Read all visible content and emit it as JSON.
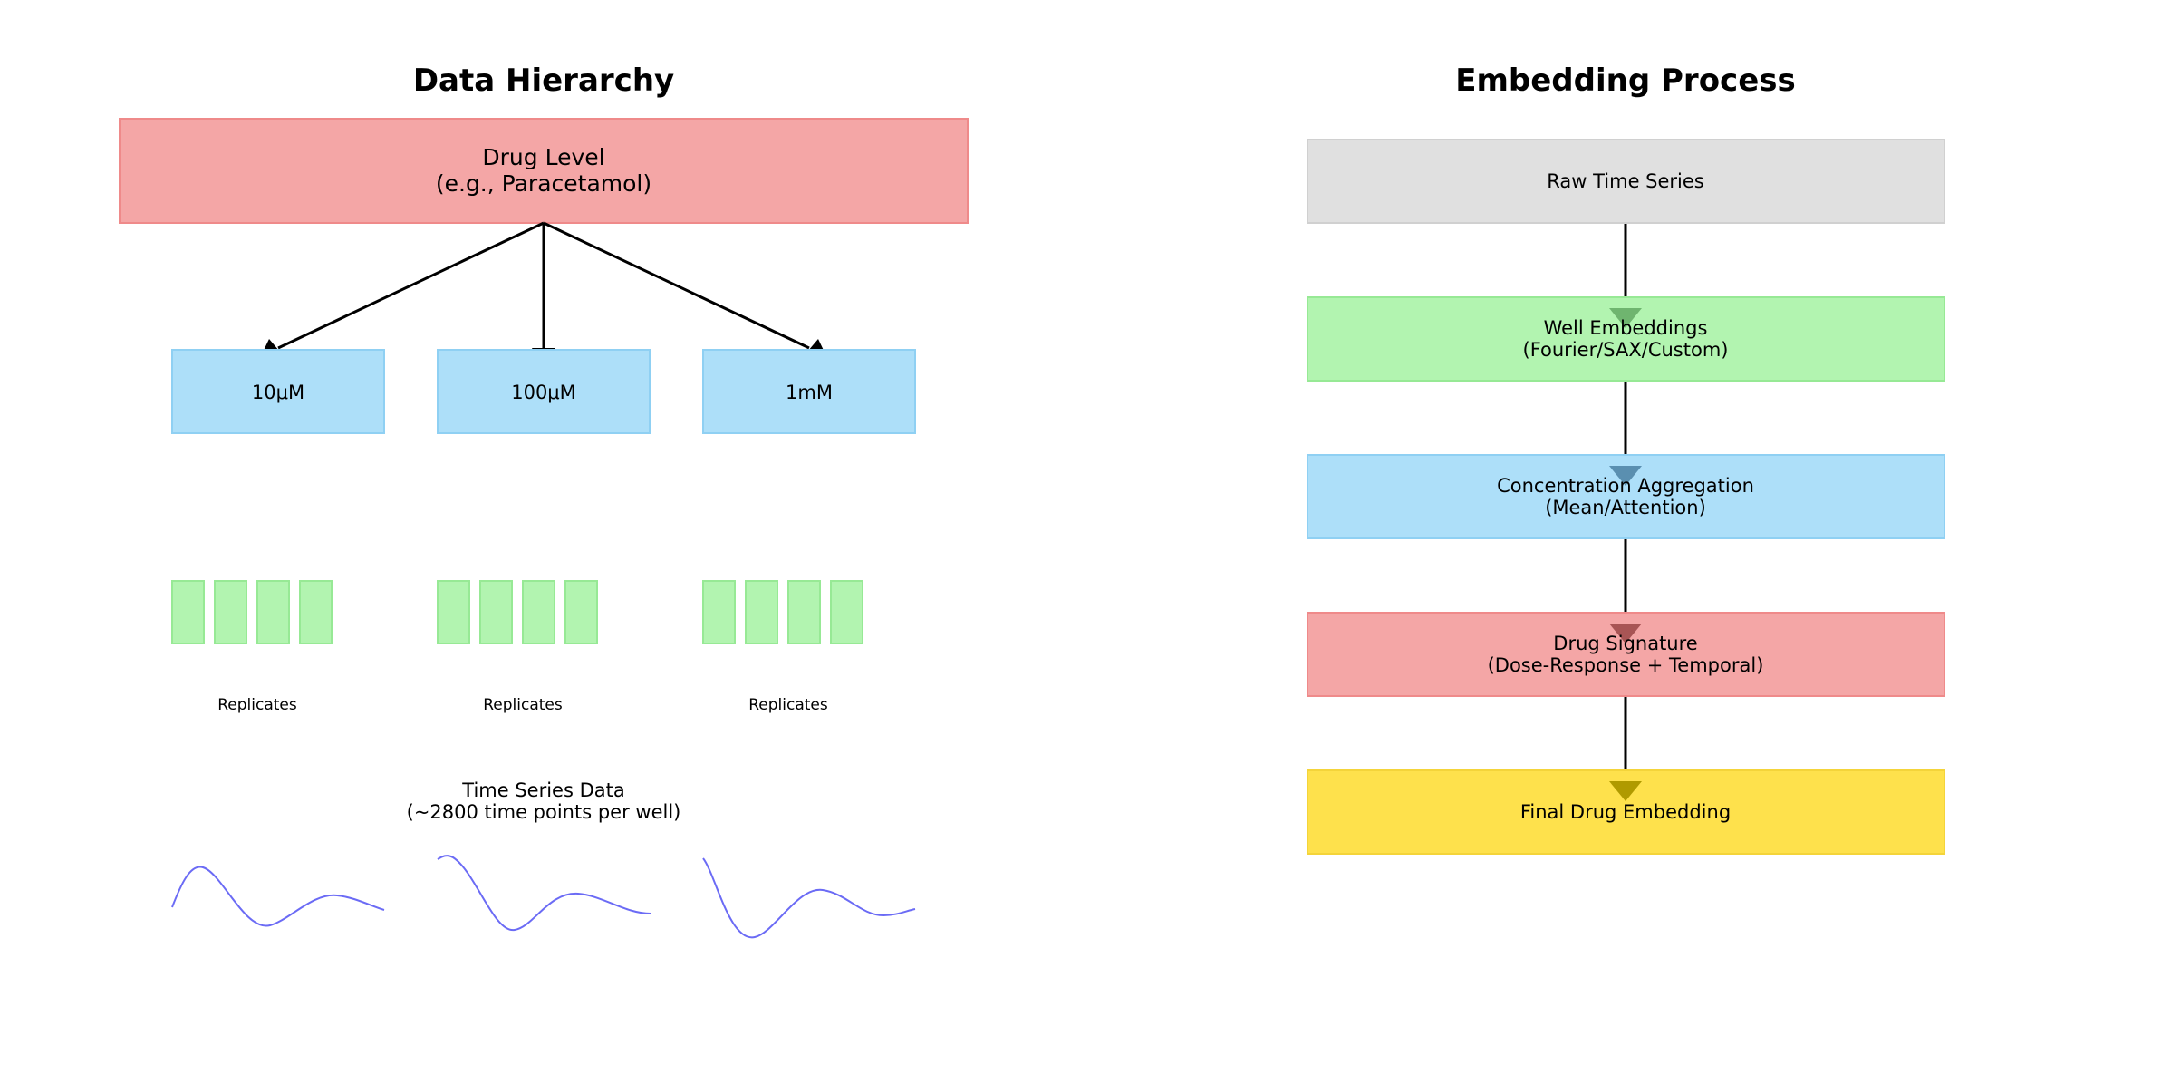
{
  "left_panel": {
    "title": "Data Hierarchy",
    "drug_box": {
      "line1": "Drug Level",
      "line2": "(e.g., Paracetamol)",
      "fill": "#f4a6a6",
      "stroke": "#ef8a8a"
    },
    "concentrations": [
      {
        "label": "10μM"
      },
      {
        "label": "100μM"
      },
      {
        "label": "1mM"
      }
    ],
    "concentration_fill": "#addff9",
    "concentration_stroke": "#8fd0f3",
    "replicate_fill": "#b2f4b0",
    "replicate_stroke": "#97e995",
    "replicates_per_group": 4,
    "replicates_label": "Replicates",
    "time_series": {
      "line1": "Time Series Data",
      "line2": "(~2800 time points per well)",
      "curve_color": "#6b6bf5"
    }
  },
  "right_panel": {
    "title": "Embedding Process",
    "steps": [
      {
        "line1": "Raw Time Series",
        "line2": "",
        "fill": "#e0e0e0",
        "stroke": "#d0d0d0",
        "arrow": ""
      },
      {
        "line1": "Well Embeddings",
        "line2": "(Fourier/SAX/Custom)",
        "fill": "#b2f4b0",
        "stroke": "#97e995",
        "arrow": "#6fb56f"
      },
      {
        "line1": "Concentration Aggregation",
        "line2": "(Mean/Attention)",
        "fill": "#addff9",
        "stroke": "#8fd0f3",
        "arrow": "#5a8fb0"
      },
      {
        "line1": "Drug Signature",
        "line2": "(Dose-Response + Temporal)",
        "fill": "#f4a6a6",
        "stroke": "#ef8a8a",
        "arrow": "#a85555"
      },
      {
        "line1": "Final Drug Embedding",
        "line2": "",
        "fill": "#fee14c",
        "stroke": "#f4d43a",
        "arrow": "#b09a00"
      }
    ]
  }
}
